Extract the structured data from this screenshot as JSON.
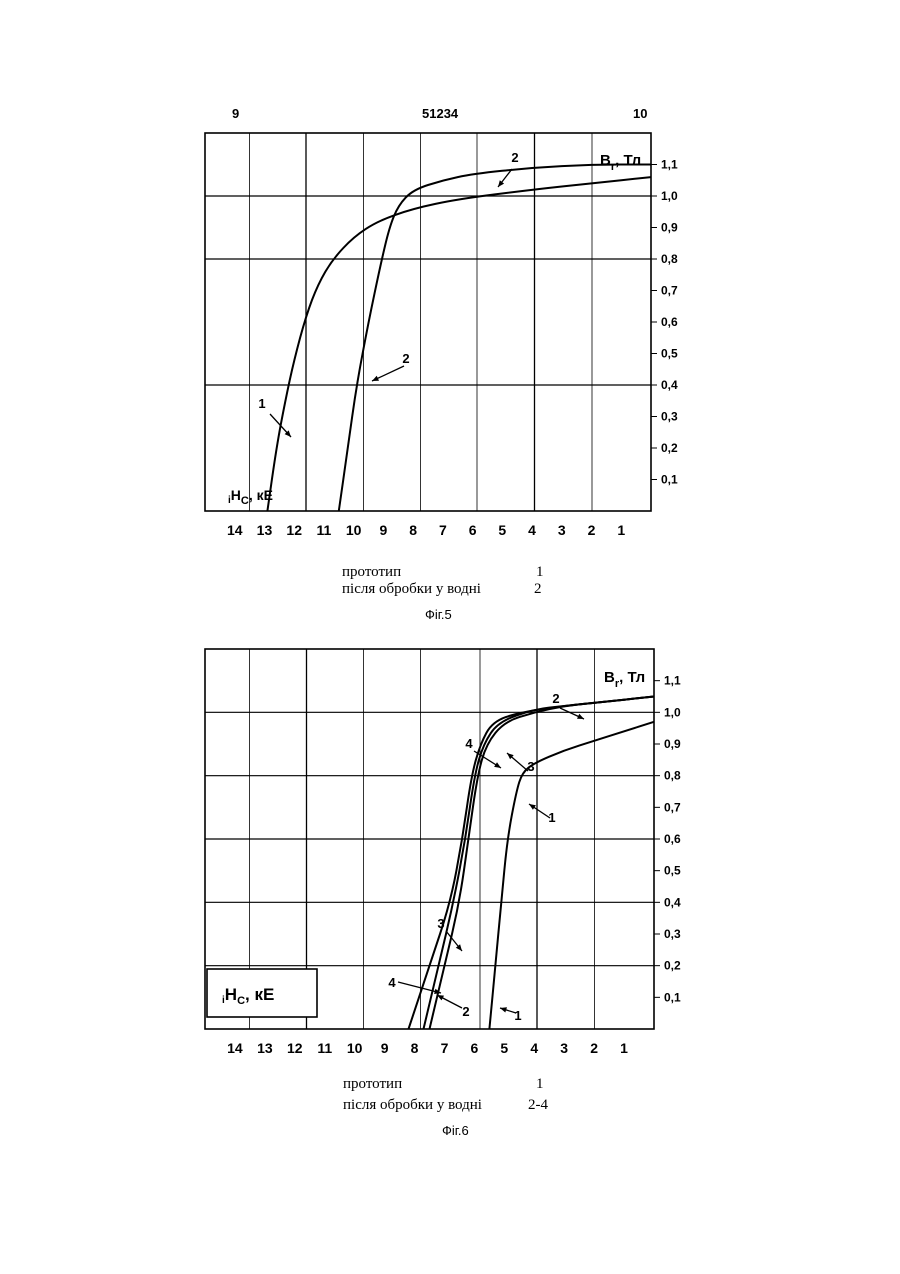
{
  "header": {
    "left": "9",
    "center": "51234",
    "right": "10"
  },
  "figures": [
    {
      "caption_fig": "Фіг.5",
      "legend": [
        {
          "label": "прототип",
          "value": "1"
        },
        {
          "label": "після обробки у водні",
          "value": "2"
        }
      ],
      "y_axis_label": "B",
      "y_axis_sub": "r",
      "y_axis_unit": ", Тл",
      "x_axis_label_pre": "i",
      "x_axis_label": "H",
      "x_axis_sub": "C",
      "x_axis_unit": ", кЕ"
    },
    {
      "caption_fig": "Фіг.6",
      "legend": [
        {
          "label": "прототип",
          "value": "1"
        },
        {
          "label": "після обробки у водні",
          "value": "2-4"
        }
      ],
      "y_axis_label": "B",
      "y_axis_sub": "r",
      "y_axis_unit": ", Тл",
      "x_axis_label_pre": "i",
      "x_axis_label": "H",
      "x_axis_sub": "C",
      "x_axis_unit": ", кЕ"
    }
  ],
  "chart_data": [
    {
      "type": "line",
      "title": "Фіг.5",
      "xlabel": "iHC, кЕ",
      "ylabel": "Br, Тл",
      "x_reversed": true,
      "xlim": [
        0,
        15
      ],
      "ylim": [
        0,
        1.2
      ],
      "x_ticks": [
        "14",
        "13",
        "12",
        "11",
        "10",
        "9",
        "8",
        "7",
        "6",
        "5",
        "4",
        "3",
        "2",
        "1"
      ],
      "y_ticks": [
        "0,1",
        "0,2",
        "0,3",
        "0,4",
        "0,5",
        "0,6",
        "0,7",
        "0,8",
        "0,9",
        "1,0",
        "1,1"
      ],
      "grid": true,
      "series": [
        {
          "name": "1",
          "points": [
            [
              12.9,
              0.0
            ],
            [
              12.6,
              0.2
            ],
            [
              12.3,
              0.35
            ],
            [
              12.0,
              0.48
            ],
            [
              11.6,
              0.62
            ],
            [
              11.2,
              0.72
            ],
            [
              10.7,
              0.8
            ],
            [
              10.0,
              0.87
            ],
            [
              9.2,
              0.92
            ],
            [
              8.0,
              0.96
            ],
            [
              6.5,
              0.99
            ],
            [
              4.0,
              1.02
            ],
            [
              2.0,
              1.04
            ],
            [
              0.0,
              1.06
            ]
          ]
        },
        {
          "name": "2",
          "points": [
            [
              10.5,
              0.0
            ],
            [
              10.2,
              0.2
            ],
            [
              9.9,
              0.4
            ],
            [
              9.5,
              0.6
            ],
            [
              9.1,
              0.78
            ],
            [
              8.8,
              0.9
            ],
            [
              8.5,
              0.97
            ],
            [
              8.0,
              1.02
            ],
            [
              7.0,
              1.05
            ],
            [
              6.0,
              1.07
            ],
            [
              4.0,
              1.09
            ],
            [
              2.0,
              1.1
            ],
            [
              0.0,
              1.1
            ]
          ]
        }
      ]
    },
    {
      "type": "line",
      "title": "Фіг.6",
      "xlabel": "iHC, кЕ",
      "ylabel": "Br, Тл",
      "x_reversed": true,
      "xlim": [
        0,
        15
      ],
      "ylim": [
        0,
        1.2
      ],
      "x_ticks": [
        "14",
        "13",
        "12",
        "11",
        "10",
        "9",
        "8",
        "7",
        "6",
        "5",
        "4",
        "3",
        "2",
        "1"
      ],
      "y_ticks": [
        "0,1",
        "0,2",
        "0,3",
        "0,4",
        "0,5",
        "0,6",
        "0,7",
        "0,8",
        "0,9",
        "1,0",
        "1,1"
      ],
      "grid": true,
      "series": [
        {
          "name": "1",
          "points": [
            [
              5.5,
              0.0
            ],
            [
              5.3,
              0.2
            ],
            [
              5.1,
              0.4
            ],
            [
              4.9,
              0.6
            ],
            [
              4.6,
              0.75
            ],
            [
              4.4,
              0.81
            ],
            [
              4.0,
              0.84
            ],
            [
              3.0,
              0.88
            ],
            [
              2.0,
              0.91
            ],
            [
              1.0,
              0.94
            ],
            [
              0.0,
              0.97
            ]
          ]
        },
        {
          "name": "2",
          "points": [
            [
              7.5,
              0.0
            ],
            [
              7.0,
              0.2
            ],
            [
              6.5,
              0.4
            ],
            [
              6.2,
              0.6
            ],
            [
              5.9,
              0.8
            ],
            [
              5.6,
              0.9
            ],
            [
              5.0,
              0.97
            ],
            [
              4.0,
              1.0
            ],
            [
              3.0,
              1.02
            ],
            [
              2.0,
              1.03
            ],
            [
              0.0,
              1.05
            ]
          ]
        },
        {
          "name": "3",
          "points": [
            [
              7.7,
              0.0
            ],
            [
              7.2,
              0.2
            ],
            [
              6.7,
              0.4
            ],
            [
              6.3,
              0.6
            ],
            [
              6.0,
              0.8
            ],
            [
              5.7,
              0.9
            ],
            [
              5.2,
              0.97
            ],
            [
              4.0,
              1.01
            ],
            [
              3.0,
              1.02
            ],
            [
              2.0,
              1.03
            ],
            [
              0.0,
              1.05
            ]
          ]
        },
        {
          "name": "4",
          "points": [
            [
              8.2,
              0.0
            ],
            [
              7.5,
              0.2
            ],
            [
              6.8,
              0.4
            ],
            [
              6.4,
              0.6
            ],
            [
              6.1,
              0.8
            ],
            [
              5.8,
              0.9
            ],
            [
              5.4,
              0.97
            ],
            [
              4.5,
              1.0
            ],
            [
              3.0,
              1.02
            ],
            [
              2.0,
              1.03
            ],
            [
              0.0,
              1.05
            ]
          ]
        }
      ]
    }
  ]
}
